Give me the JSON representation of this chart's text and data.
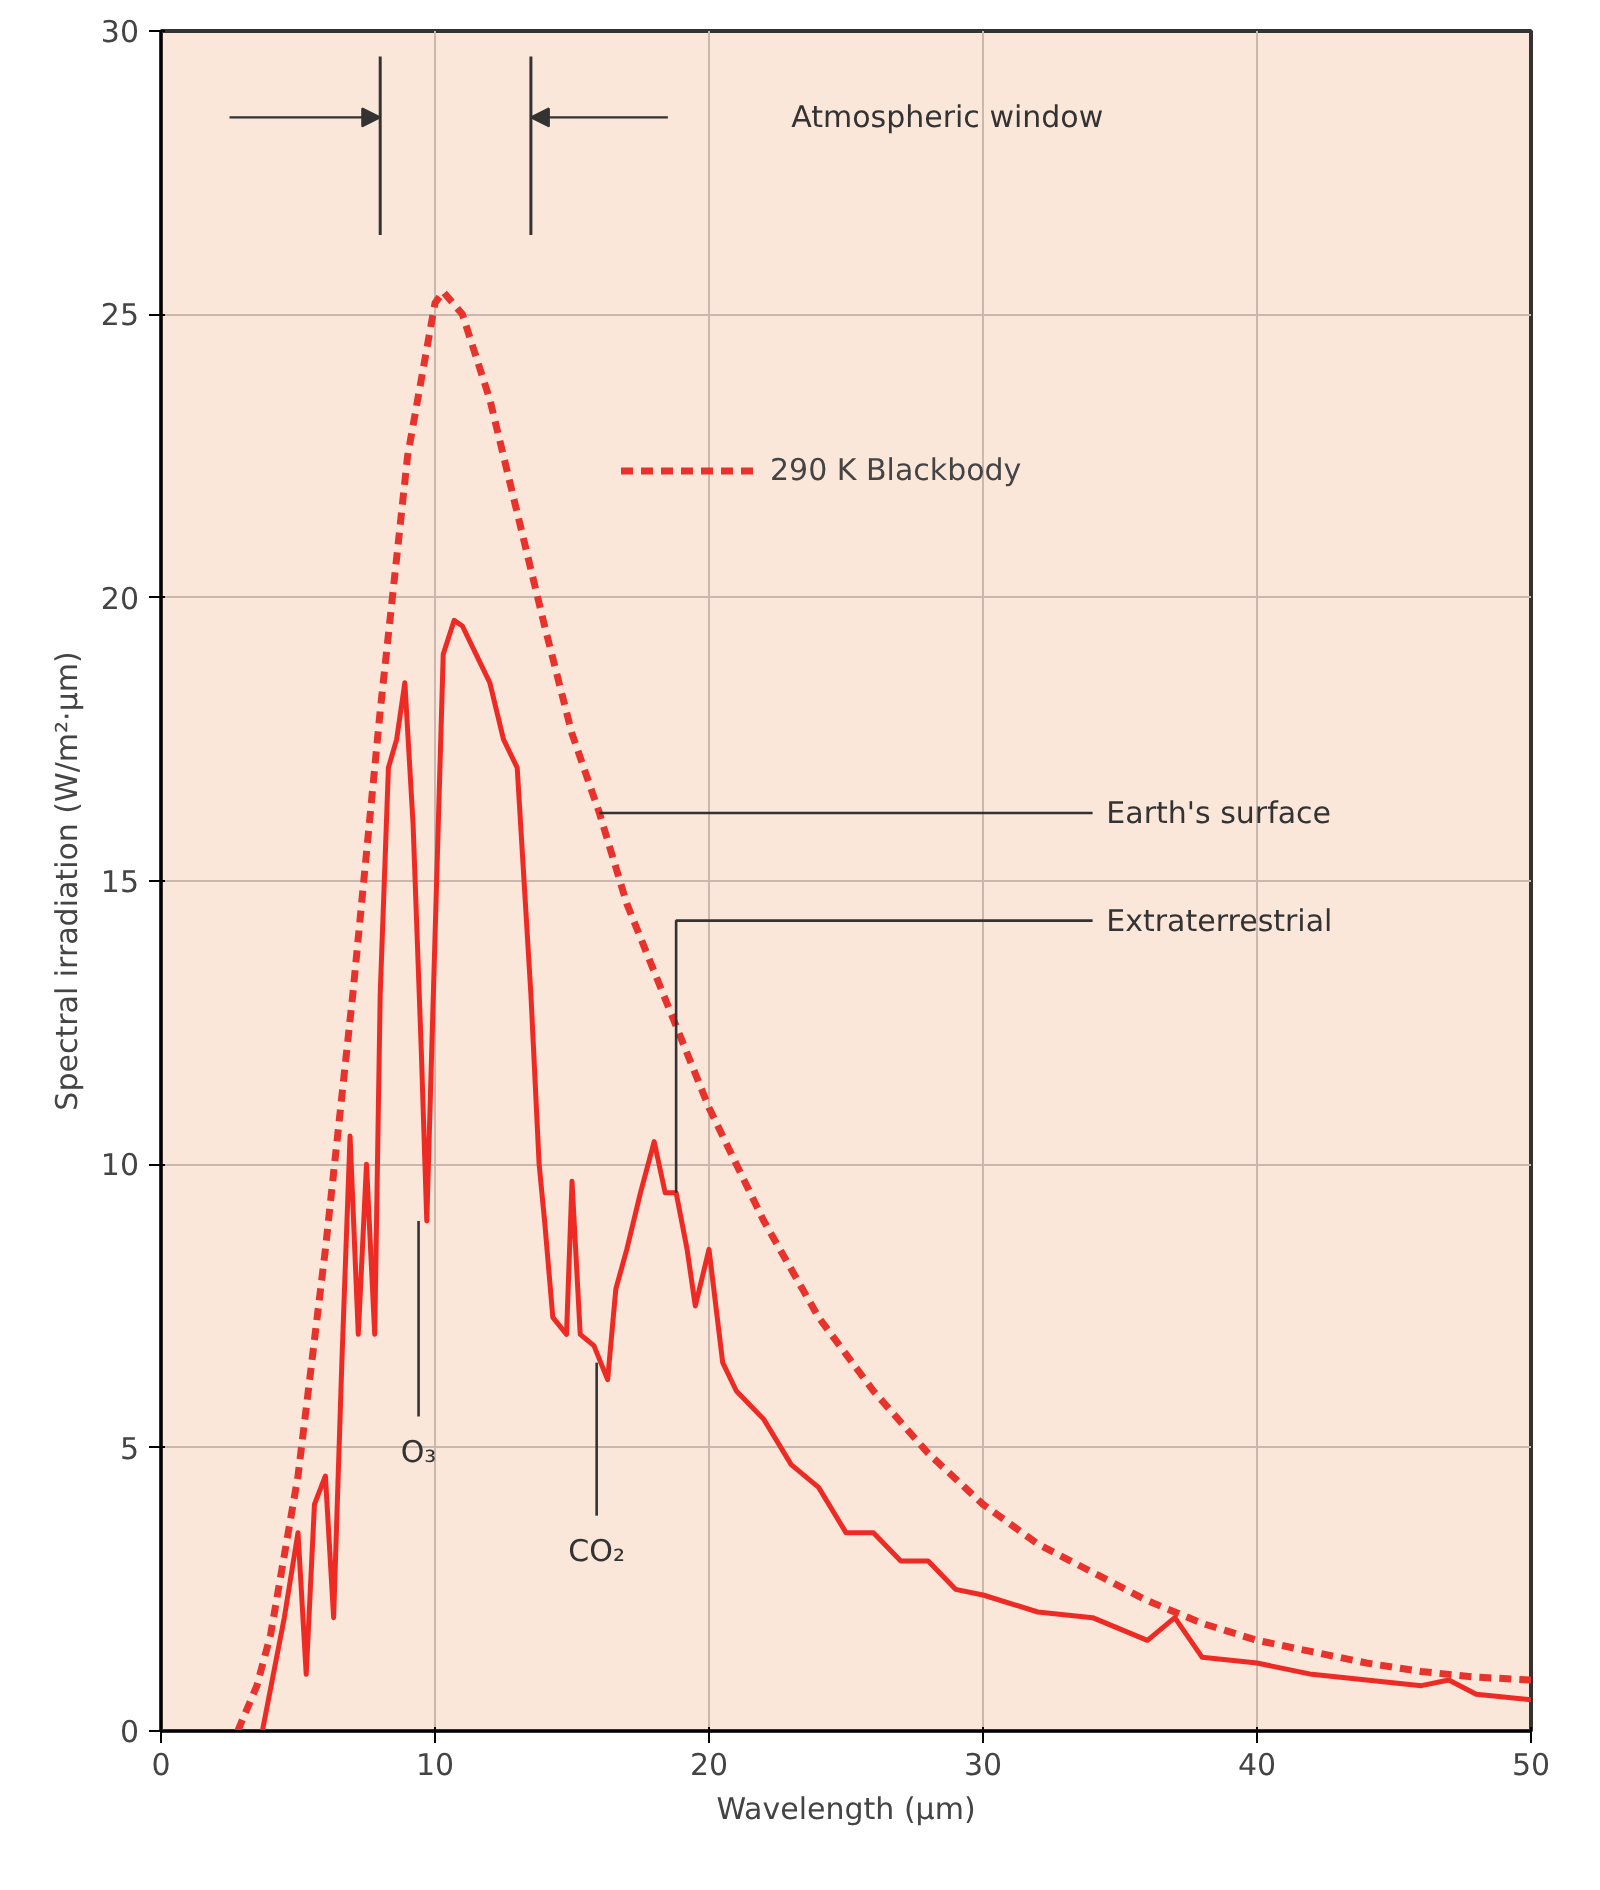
{
  "chart_data": {
    "type": "line",
    "xlabel": "Wavelength (μm)",
    "ylabel": "Spectral irradiation (W/m²·μm)",
    "xlim": [
      0,
      50
    ],
    "ylim": [
      0,
      30
    ],
    "xticks": [
      0,
      10,
      20,
      30,
      40,
      50
    ],
    "yticks": [
      0,
      5,
      10,
      15,
      20,
      25,
      30
    ],
    "grid": true,
    "legend": "top right",
    "series": [
      {
        "x": [
          3.7,
          4.5,
          5,
          5.3,
          5.6,
          6,
          6.3,
          6.6,
          6.9,
          7.2,
          7.5,
          7.8,
          8,
          8.3,
          8.6,
          8.9,
          9.2,
          9.5,
          9.7,
          10,
          10.3,
          10.7,
          11,
          11.5,
          12,
          12.5,
          13,
          13.5,
          13.8,
          14,
          14.3,
          14.8,
          15,
          15.3,
          15.8,
          16.3,
          16.6,
          17,
          17.5,
          18,
          18.4,
          18.8,
          19.2,
          19.5,
          20,
          20.5,
          21,
          22,
          23,
          24,
          25,
          26,
          27,
          28,
          29,
          30,
          32,
          34,
          36,
          37,
          38,
          40,
          42,
          44,
          46,
          47,
          48,
          50
        ],
        "values": [
          0,
          2,
          3.5,
          1,
          4,
          4.5,
          2,
          6.5,
          10.5,
          7,
          10,
          7,
          13,
          17,
          17.5,
          18.5,
          16,
          12,
          9,
          14,
          19,
          19.6,
          19.5,
          19,
          18.5,
          17.5,
          17,
          13,
          10,
          9,
          7.3,
          7,
          9.7,
          7,
          6.8,
          6.2,
          7.8,
          8.5,
          9.5,
          10.4,
          9.5,
          9.5,
          8.5,
          7.5,
          8.5,
          6.5,
          6,
          5.5,
          4.7,
          4.3,
          3.5,
          3.5,
          3,
          3,
          2.5,
          2.4,
          2.1,
          2,
          1.6,
          2,
          1.3,
          1.2,
          1,
          0.9,
          0.8,
          0.9,
          0.65,
          0.55
        ],
        "color": "#ee2a24",
        "line_style": "solid"
      },
      {
        "name": "290 K Blackbody",
        "x": [
          2.8,
          3.5,
          4,
          5,
          6,
          7,
          8,
          9,
          10,
          10.3,
          11,
          12,
          13,
          14,
          15,
          16,
          17,
          18,
          19,
          20,
          22,
          24,
          26,
          28,
          30,
          32,
          34,
          36,
          38,
          40,
          42,
          44,
          46,
          48,
          50
        ],
        "values": [
          0,
          0.8,
          1.7,
          4.5,
          8.5,
          13,
          18,
          22.5,
          25.2,
          25.4,
          25,
          23.5,
          21.5,
          19.5,
          17.6,
          16.2,
          14.6,
          13.4,
          12.2,
          11,
          9,
          7.3,
          6,
          4.9,
          4,
          3.3,
          2.8,
          2.3,
          1.9,
          1.6,
          1.4,
          1.2,
          1.05,
          0.95,
          0.9
        ],
        "color": "#e8322c",
        "line_style": "dashed"
      }
    ],
    "ref_lines": [
      {
        "axis": "x",
        "value": 8
      },
      {
        "axis": "x",
        "value": 13.5,
        "label": "Atmospheric window"
      }
    ],
    "annotations": [
      {
        "text": "Earth's surface",
        "x": 16,
        "y": 16.2
      },
      {
        "text": "Extraterrestrial",
        "x": 18.8,
        "y": 9.5
      },
      {
        "text": "O₃",
        "x": 9.4,
        "y": 9
      },
      {
        "text": "CO₂",
        "x": 15.9,
        "y": 6.5
      }
    ]
  }
}
